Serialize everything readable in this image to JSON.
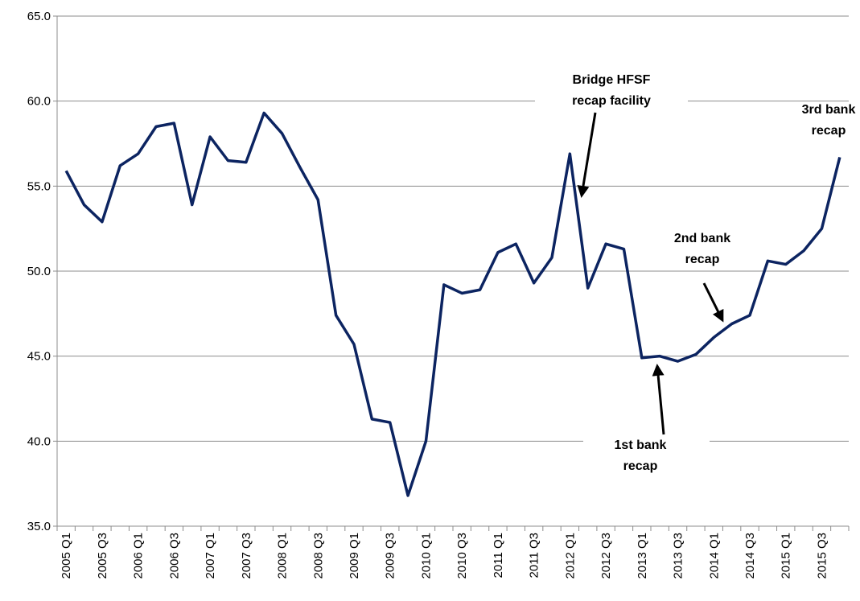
{
  "chart_data": {
    "type": "line",
    "categories": [
      "2005 Q1",
      null,
      "2005 Q3",
      null,
      "2006 Q1",
      null,
      "2006 Q3",
      null,
      "2007 Q1",
      null,
      "2007 Q3",
      null,
      "2008 Q1",
      null,
      "2008 Q3",
      null,
      "2009 Q1",
      null,
      "2009 Q3",
      null,
      "2010 Q1",
      null,
      "2010 Q3",
      null,
      "2011 Q1",
      null,
      "2011 Q3",
      null,
      "2012 Q1",
      null,
      "2012 Q3",
      null,
      "2013 Q1",
      null,
      "2013 Q3",
      null,
      "2014 Q1",
      null,
      "2014 Q3",
      null,
      "2015 Q1",
      null,
      "2015 Q3",
      null
    ],
    "series": [
      {
        "color": "#0c2461",
        "values": [
          55.9,
          53.9,
          52.9,
          56.2,
          56.9,
          58.5,
          58.7,
          53.9,
          57.9,
          56.5,
          56.4,
          59.3,
          58.1,
          56.1,
          54.2,
          47.4,
          45.7,
          41.3,
          41.1,
          36.8,
          40.0,
          49.2,
          48.7,
          48.9,
          51.1,
          51.6,
          49.3,
          50.8,
          56.9,
          49.0,
          51.6,
          51.3,
          44.9,
          45.0,
          44.7,
          45.1,
          46.1,
          46.9,
          47.4,
          50.6,
          50.4,
          51.2,
          52.5,
          56.7
        ]
      }
    ],
    "ylim": [
      35,
      65
    ],
    "yticks": [
      {
        "value": 35,
        "label": "35.0"
      },
      {
        "value": 40,
        "label": "40.0"
      },
      {
        "value": 45,
        "label": "45.0"
      },
      {
        "value": 50,
        "label": "50.0"
      },
      {
        "value": 55,
        "label": "55.0"
      },
      {
        "value": 60,
        "label": "60.0"
      },
      {
        "value": 65,
        "label": "65.0"
      }
    ],
    "grid": true,
    "annotations": [
      [
        "Bridge HFSF",
        "recap facility"
      ],
      [
        "3rd bank",
        "recap"
      ],
      [
        "2nd bank",
        "recap"
      ],
      [
        "1st bank",
        "recap"
      ]
    ]
  }
}
